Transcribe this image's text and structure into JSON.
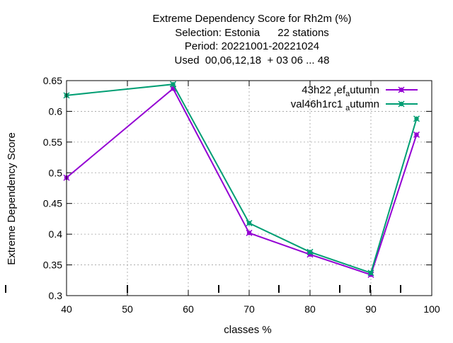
{
  "chart_data": {
    "type": "line",
    "title_lines": [
      "Extreme Dependency Score  for Rh2m (%)",
      "Selection: Estonia      22 stations",
      "Period: 20221001-20221024",
      "Used  00,06,12,18  + 03 06 ... 48"
    ],
    "xlabel": "classes %",
    "ylabel": "Extreme Dependency Score",
    "xlim": [
      40,
      100
    ],
    "ylim": [
      0.3,
      0.65
    ],
    "xticks": [
      "40",
      "50",
      "60",
      "70",
      "80",
      "90",
      "100"
    ],
    "yticks": [
      "0.3",
      "0.35",
      "0.4",
      "0.45",
      "0.5",
      "0.55",
      "0.6",
      "0.65"
    ],
    "grid": true,
    "legend_position": "top-right",
    "series": [
      {
        "name": "43h22",
        "name_sub1": "r",
        "name_mid": "ef",
        "name_sub2": "a",
        "name_end": "utumn",
        "color": "#9400d3",
        "x": [
          40,
          57.5,
          70,
          80,
          90,
          97.5
        ],
        "values": [
          0.492,
          0.637,
          0.402,
          0.367,
          0.334,
          0.562
        ]
      },
      {
        "name": "val46h1rc1",
        "name_sub1": "a",
        "name_end": "utumn",
        "color": "#009e73",
        "x": [
          40,
          57.5,
          70,
          80,
          90,
          97.5
        ],
        "values": [
          0.626,
          0.644,
          0.418,
          0.371,
          0.337,
          0.588
        ]
      }
    ],
    "bottom_marks_x": [
      40,
      50,
      60,
      65,
      70,
      75,
      80,
      85,
      90,
      95,
      100
    ]
  }
}
